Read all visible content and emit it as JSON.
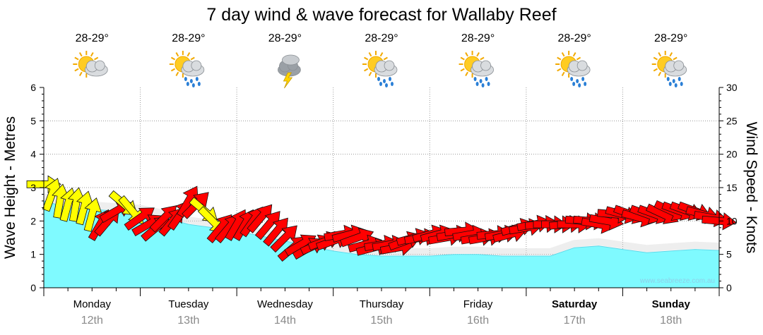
{
  "chart_data": {
    "type": "area",
    "title": "7 day wind & wave forecast for Wallaby Reef",
    "ylabel_left": "Wave Height - Metres",
    "ylabel_right": "Wind Speed - Knots",
    "ylim_left": [
      0,
      6
    ],
    "ylim_right": [
      0,
      30
    ],
    "yticks_left": [
      "0",
      "1",
      "2",
      "3",
      "4",
      "5",
      "6"
    ],
    "yticks_right": [
      "0",
      "5",
      "10",
      "15",
      "20",
      "25",
      "30"
    ],
    "grid": true,
    "days": [
      {
        "day": "Monday",
        "date": "12th",
        "bold": false,
        "temp": "28-29°",
        "icon": "partly-cloudy-icon"
      },
      {
        "day": "Tuesday",
        "date": "13th",
        "bold": false,
        "temp": "28-29°",
        "icon": "partly-cloudy-showers-icon"
      },
      {
        "day": "Wednesday",
        "date": "14th",
        "bold": false,
        "temp": "28-29°",
        "icon": "thunderstorm-icon"
      },
      {
        "day": "Thursday",
        "date": "15th",
        "bold": false,
        "temp": "28-29°",
        "icon": "partly-cloudy-showers-icon"
      },
      {
        "day": "Friday",
        "date": "16th",
        "bold": false,
        "temp": "28-29°",
        "icon": "partly-cloudy-showers-icon"
      },
      {
        "day": "Saturday",
        "date": "17th",
        "bold": true,
        "temp": "28-29°",
        "icon": "partly-cloudy-showers-icon"
      },
      {
        "day": "Sunday",
        "date": "18th",
        "bold": true,
        "temp": "28-29°",
        "icon": "partly-cloudy-showers-icon"
      }
    ],
    "wave_series": {
      "name": "Wave Height",
      "unit": "m",
      "x_hours": [
        0,
        6,
        12,
        18,
        24,
        30,
        36,
        42,
        48,
        54,
        60,
        66,
        72,
        78,
        84,
        90,
        96,
        102,
        108,
        114,
        120,
        126,
        132,
        138,
        144,
        150,
        156,
        162,
        168
      ],
      "values": [
        2.6,
        2.4,
        2.35,
        2.3,
        2.25,
        2.1,
        1.9,
        1.8,
        1.7,
        1.55,
        1.4,
        1.25,
        1.1,
        1.0,
        0.95,
        0.95,
        0.95,
        1.0,
        1.0,
        0.95,
        0.95,
        0.95,
        1.2,
        1.25,
        1.15,
        1.05,
        1.1,
        1.15,
        1.12
      ]
    },
    "wind_series": {
      "name": "Wind Speed",
      "unit": "kn",
      "x_hours": [
        0,
        2,
        4,
        6,
        8,
        10,
        12,
        14,
        16,
        18,
        20,
        22,
        24,
        26,
        28,
        30,
        32,
        34,
        36,
        38,
        40,
        42,
        44,
        46,
        48,
        50,
        52,
        54,
        56,
        58,
        60,
        62,
        64,
        66,
        68,
        70,
        72,
        74,
        76,
        78,
        80,
        82,
        84,
        86,
        88,
        90,
        92,
        94,
        96,
        98,
        100,
        102,
        104,
        106,
        108,
        110,
        112,
        114,
        116,
        118,
        120,
        122,
        124,
        126,
        128,
        130,
        132,
        134,
        136,
        138,
        140,
        142,
        144,
        146,
        148,
        150,
        152,
        154,
        156,
        158,
        160,
        162,
        164,
        166,
        168
      ],
      "values": [
        15.5,
        14,
        13,
        12.5,
        12.5,
        12,
        11,
        9.5,
        10,
        11.5,
        12.5,
        11.5,
        10.5,
        9.5,
        9,
        10.5,
        10,
        11,
        13,
        12.5,
        11.5,
        10,
        9,
        9,
        9.5,
        9.5,
        10,
        10.5,
        9.5,
        8.5,
        7.5,
        6,
        6.5,
        6,
        6.5,
        7,
        7,
        8,
        8,
        7.5,
        6.5,
        6,
        6.5,
        6.5,
        6,
        7,
        7.5,
        7.5,
        8,
        8,
        7.5,
        8,
        8.5,
        8,
        7.5,
        7.5,
        8,
        8,
        8,
        9,
        9,
        9.5,
        9.5,
        9.5,
        9.5,
        9.5,
        9.5,
        10,
        10,
        9.5,
        10,
        11,
        11,
        11,
        10.5,
        11,
        11,
        11,
        11.5,
        11.5,
        11.5,
        11.5,
        11,
        10.5,
        10
      ],
      "direction_deg": [
        270,
        340,
        350,
        345,
        350,
        345,
        345,
        330,
        320,
        300,
        230,
        220,
        305,
        300,
        310,
        315,
        320,
        325,
        330,
        315,
        230,
        225,
        320,
        320,
        330,
        330,
        325,
        320,
        320,
        320,
        315,
        310,
        300,
        300,
        295,
        290,
        290,
        280,
        285,
        290,
        285,
        285,
        280,
        280,
        280,
        290,
        285,
        280,
        285,
        285,
        280,
        280,
        275,
        280,
        280,
        280,
        275,
        280,
        285,
        285,
        280,
        280,
        275,
        270,
        270,
        275,
        270,
        265,
        265,
        260,
        260,
        265,
        255,
        250,
        255,
        250,
        250,
        245,
        245,
        250,
        250,
        250,
        255,
        260,
        265
      ],
      "highlight_color": "#ffff00",
      "color": "#ff0000"
    },
    "wave_color": "#7ffaff",
    "credit": "www.seabreeze.com.au"
  }
}
